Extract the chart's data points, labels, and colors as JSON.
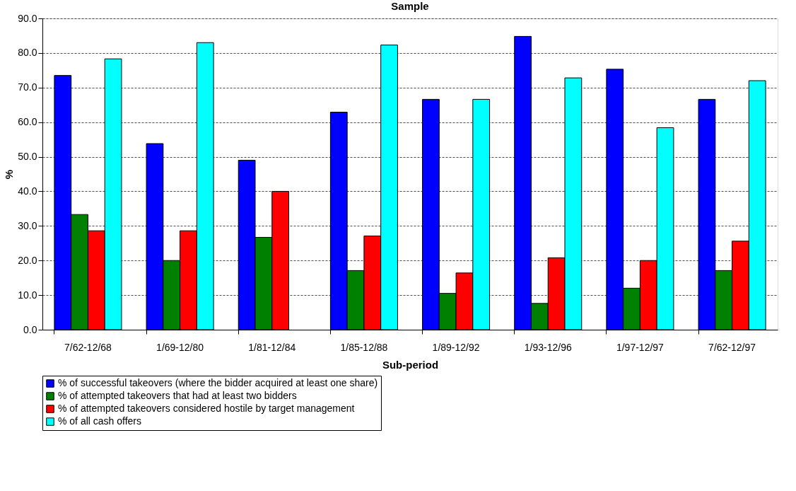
{
  "chart_data": {
    "type": "bar",
    "title": "Sample",
    "xlabel": "Sub-period",
    "ylabel": "%",
    "categories": [
      "7/62-12/68",
      "1/69-12/80",
      "1/81-12/84",
      "1/85-12/88",
      "1/89-12/92",
      "1/93-12/96",
      "1/97-12/97",
      "7/62-12/97"
    ],
    "series": [
      {
        "name": "% of successful takeovers (where the bidder acquired at least one share)",
        "color": "#0000ff",
        "values": [
          73.5,
          53.8,
          49.0,
          62.9,
          66.6,
          84.8,
          75.3,
          66.6
        ]
      },
      {
        "name": "% of attempted takeovers that had at least two bidders",
        "color": "#008000",
        "values": [
          33.3,
          20.0,
          26.7,
          17.1,
          10.5,
          7.6,
          12.0,
          17.1
        ]
      },
      {
        "name": "% of attempted takeovers considered hostile by target management",
        "color": "#ff0000",
        "values": [
          28.6,
          28.6,
          40.0,
          27.1,
          16.4,
          20.8,
          20.0,
          25.6
        ]
      },
      {
        "name": "% of all cash offers",
        "color": "#00ffff",
        "values": [
          78.3,
          83.0,
          null,
          82.3,
          66.6,
          72.8,
          58.4,
          72.0
        ]
      }
    ],
    "ylim": [
      0,
      90
    ],
    "yticks": [
      {
        "value": 0,
        "label": "0.0"
      },
      {
        "value": 10,
        "label": "10.0"
      },
      {
        "value": 20,
        "label": "20.0"
      },
      {
        "value": 30,
        "label": "30.0"
      },
      {
        "value": 40,
        "label": "40.0"
      },
      {
        "value": 50,
        "label": "50.0"
      },
      {
        "value": 60,
        "label": "60.0"
      },
      {
        "value": 70,
        "label": "70.0"
      },
      {
        "value": 80,
        "label": "80.0"
      },
      {
        "value": 90,
        "label": "90.0"
      }
    ],
    "grid": "y",
    "legend": "bottom"
  }
}
